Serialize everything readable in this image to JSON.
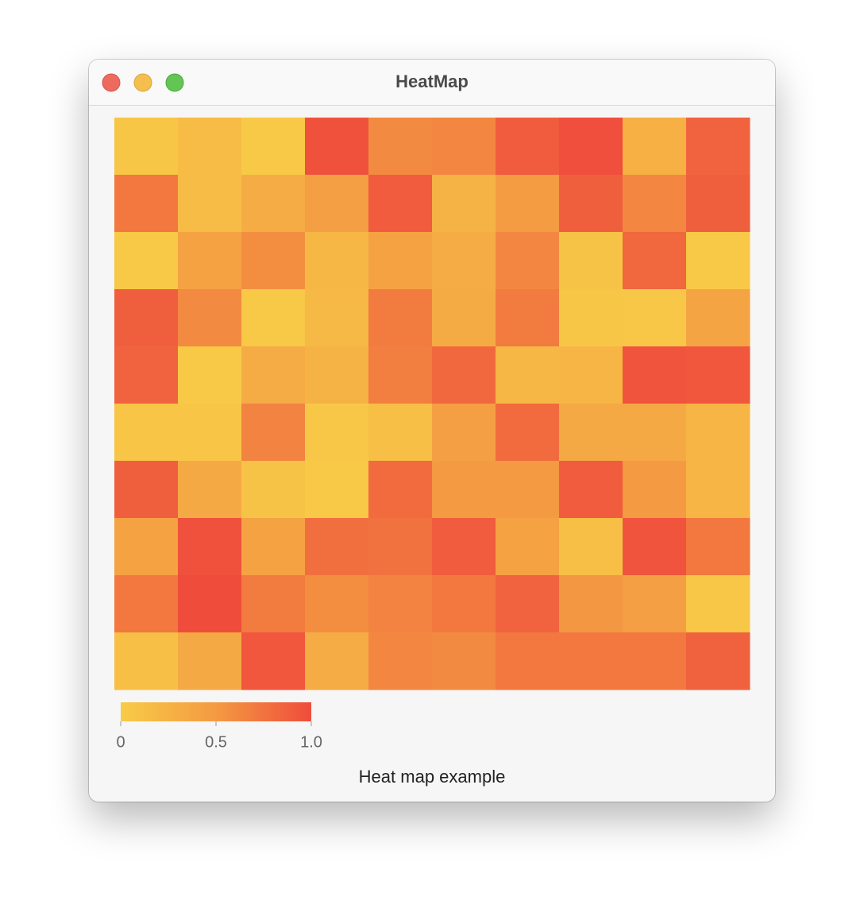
{
  "window": {
    "title": "HeatMap"
  },
  "chart_data": {
    "type": "heatmap",
    "title": "Heat map example",
    "values": [
      [
        0.05,
        0.15,
        0.03,
        0.97,
        0.6,
        0.62,
        0.9,
        0.98,
        0.28,
        0.85
      ],
      [
        0.72,
        0.15,
        0.32,
        0.45,
        0.9,
        0.25,
        0.48,
        0.88,
        0.62,
        0.88
      ],
      [
        0.03,
        0.42,
        0.58,
        0.2,
        0.42,
        0.32,
        0.62,
        0.08,
        0.83,
        0.02
      ],
      [
        0.88,
        0.6,
        0.03,
        0.18,
        0.7,
        0.33,
        0.7,
        0.05,
        0.04,
        0.4
      ],
      [
        0.85,
        0.02,
        0.32,
        0.25,
        0.68,
        0.82,
        0.2,
        0.22,
        0.95,
        0.93
      ],
      [
        0.06,
        0.06,
        0.65,
        0.04,
        0.12,
        0.45,
        0.8,
        0.35,
        0.35,
        0.22
      ],
      [
        0.88,
        0.35,
        0.08,
        0.03,
        0.8,
        0.5,
        0.5,
        0.9,
        0.5,
        0.22
      ],
      [
        0.42,
        0.97,
        0.42,
        0.78,
        0.76,
        0.9,
        0.42,
        0.12,
        0.95,
        0.72
      ],
      [
        0.72,
        1.0,
        0.7,
        0.58,
        0.65,
        0.72,
        0.85,
        0.52,
        0.45,
        0.04
      ],
      [
        0.12,
        0.35,
        0.93,
        0.32,
        0.62,
        0.6,
        0.72,
        0.72,
        0.72,
        0.86
      ]
    ],
    "colors": [
      "#f8cb47",
      "#f49a42",
      "#ef4c3c"
    ],
    "clim": [
      0,
      1
    ],
    "cticks": [
      0,
      0.5,
      {
        "value": 1,
        "label": "1.0"
      }
    ]
  }
}
